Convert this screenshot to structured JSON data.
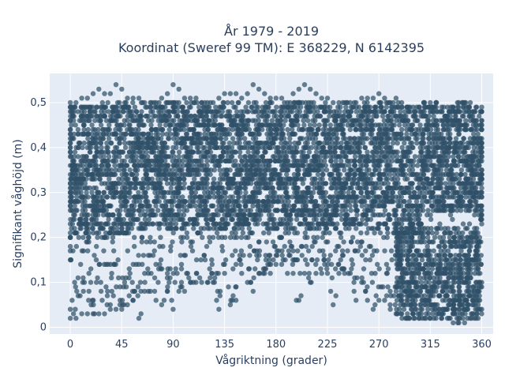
{
  "chart_data": {
    "type": "scatter",
    "title_lines": [
      "År 1979 - 2019",
      "Koordinat (Sweref 99 TM): E 368229, N 6142395"
    ],
    "xlabel": "Vågriktning (grader)",
    "ylabel": "Signifikant våghöjd (m)",
    "xlim": [
      -18,
      370
    ],
    "ylim": [
      -0.015,
      0.565
    ],
    "x_ticks": [
      0,
      45,
      90,
      135,
      180,
      225,
      270,
      315,
      360
    ],
    "x_tick_labels": [
      "0",
      "45",
      "90",
      "135",
      "180",
      "225",
      "270",
      "315",
      "360"
    ],
    "y_ticks": [
      0,
      0.1,
      0.2,
      0.3,
      0.4,
      0.5
    ],
    "y_tick_labels": [
      "0",
      "0,1",
      "0,2",
      "0,3",
      "0,4",
      "0,5"
    ],
    "grid": true,
    "legend": false,
    "marker_color": "#2f5068",
    "background_color": "#e5ecf6",
    "series": [
      {
        "x": [
          0,
          5,
          10,
          15,
          20,
          25,
          30,
          35,
          40,
          45,
          50,
          55,
          60,
          65,
          70,
          75,
          80,
          85,
          90,
          95,
          100,
          105,
          110,
          115,
          120,
          125,
          130,
          135,
          140,
          145,
          150,
          155,
          160,
          165,
          170,
          175,
          180,
          185,
          190,
          195,
          200,
          205,
          210,
          215,
          220,
          225,
          230,
          235,
          240,
          245,
          250,
          255,
          260,
          265,
          270,
          275,
          280,
          285,
          290,
          295,
          300,
          305,
          310,
          315,
          320,
          325,
          330,
          335,
          340,
          345,
          350,
          355,
          360
        ],
        "y_max": [
          0.5,
          0.5,
          0.51,
          0.51,
          0.52,
          0.53,
          0.52,
          0.52,
          0.54,
          0.53,
          0.51,
          0.51,
          0.51,
          0.5,
          0.5,
          0.5,
          0.51,
          0.52,
          0.54,
          0.53,
          0.51,
          0.51,
          0.51,
          0.5,
          0.5,
          0.5,
          0.51,
          0.52,
          0.52,
          0.52,
          0.51,
          0.52,
          0.54,
          0.53,
          0.52,
          0.51,
          0.51,
          0.51,
          0.5,
          0.52,
          0.53,
          0.54,
          0.53,
          0.52,
          0.51,
          0.51,
          0.5,
          0.5,
          0.5,
          0.5,
          0.5,
          0.51,
          0.51,
          0.51,
          0.52,
          0.51,
          0.5,
          0.51,
          0.5,
          0.49,
          0.49,
          0.49,
          0.5,
          0.5,
          0.5,
          0.49,
          0.49,
          0.49,
          0.5,
          0.5,
          0.5,
          0.49,
          0.49
        ],
        "y_min": [
          0.02,
          0.02,
          0.03,
          0.03,
          0.03,
          0.03,
          0.03,
          0.04,
          0.04,
          0.04,
          0.05,
          0.06,
          0.02,
          0.08,
          0.08,
          0.06,
          0.05,
          0.08,
          0.04,
          0.08,
          0.08,
          0.1,
          0.1,
          0.1,
          0.1,
          0.1,
          0.04,
          0.12,
          0.05,
          0.06,
          0.12,
          0.1,
          0.08,
          0.12,
          0.12,
          0.12,
          0.14,
          0.14,
          0.12,
          0.12,
          0.06,
          0.12,
          0.1,
          0.12,
          0.12,
          0.12,
          0.05,
          0.12,
          0.12,
          0.12,
          0.06,
          0.1,
          0.06,
          0.04,
          0.06,
          0.06,
          0.04,
          0.03,
          0.03,
          0.03,
          0.03,
          0.02,
          0.02,
          0.02,
          0.02,
          0.02,
          0.02,
          0.01,
          0.01,
          0.01,
          0.02,
          0.02,
          0.03
        ],
        "dense_floor": [
          0.2,
          0.2,
          0.2,
          0.2,
          0.2,
          0.2,
          0.2,
          0.2,
          0.2,
          0.2,
          0.2,
          0.22,
          0.22,
          0.22,
          0.22,
          0.22,
          0.22,
          0.22,
          0.22,
          0.22,
          0.22,
          0.23,
          0.23,
          0.23,
          0.22,
          0.22,
          0.22,
          0.22,
          0.22,
          0.22,
          0.22,
          0.22,
          0.22,
          0.22,
          0.22,
          0.22,
          0.22,
          0.22,
          0.22,
          0.22,
          0.22,
          0.22,
          0.22,
          0.22,
          0.22,
          0.22,
          0.22,
          0.22,
          0.22,
          0.22,
          0.22,
          0.22,
          0.22,
          0.22,
          0.22,
          0.22,
          0.22,
          0.2,
          0.2,
          0.2,
          0.2,
          0.22,
          0.25,
          0.26,
          0.26,
          0.26,
          0.26,
          0.26,
          0.26,
          0.26,
          0.26,
          0.24,
          0.24
        ]
      }
    ]
  }
}
